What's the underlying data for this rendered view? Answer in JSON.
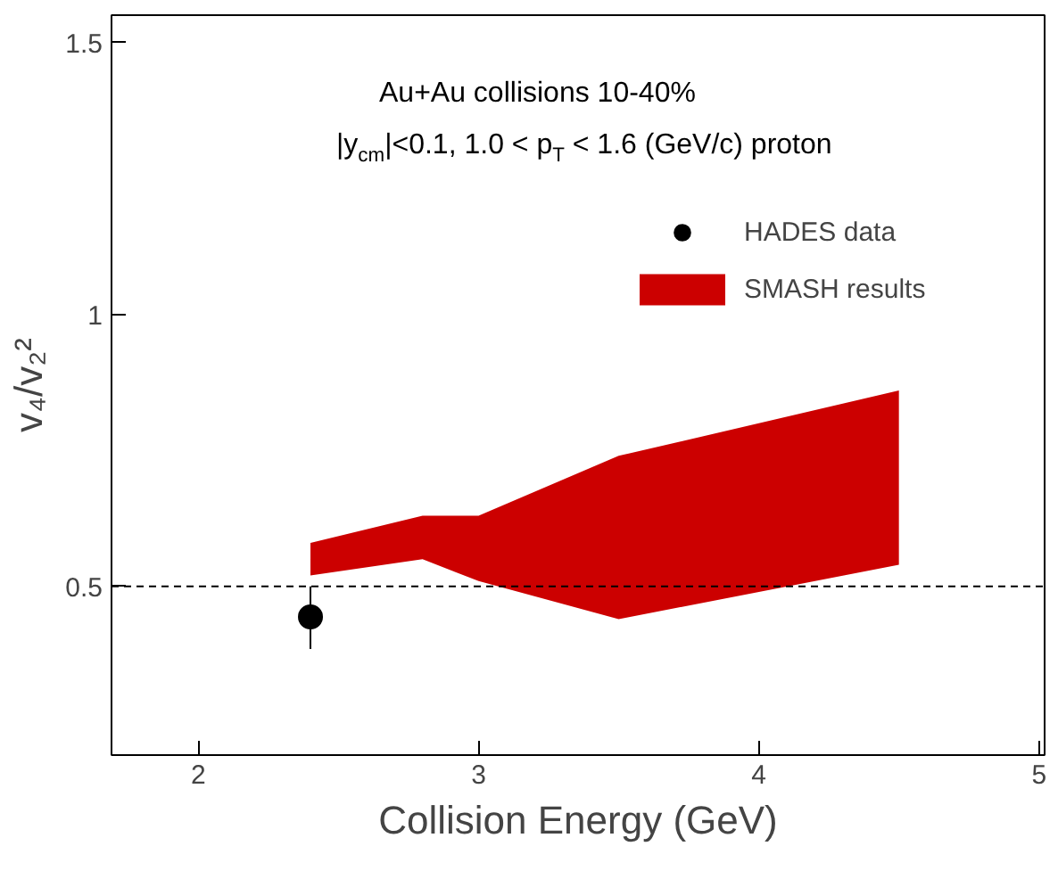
{
  "chart_data": {
    "type": "scatter",
    "xlabel": "Collision Energy (GeV)",
    "ylabel": "v₄/v₂²",
    "annotations": [
      "Au+Au collisions 10-40%",
      "|y$_{cm}$|<0.1, 1.0 < p$_{T}$ < 1.6 (GeV/c)   proton"
    ],
    "series": [
      {
        "name": "HADES data",
        "color": "#000000",
        "x": [
          2.4
        ],
        "values": [
          0.444
        ],
        "errors": [
          [
            0.385,
            0.5
          ]
        ]
      },
      {
        "name": "SMASH results",
        "type": "area",
        "color": "#cc0000",
        "x": [
          2.4,
          2.8,
          3.0,
          3.5,
          4.5
        ],
        "values": [
          null,
          null,
          null,
          null,
          null
        ],
        "lower": [
          0.52,
          0.55,
          0.51,
          0.44,
          0.54
        ],
        "upper": [
          0.58,
          0.63,
          0.63,
          0.74,
          0.86
        ]
      }
    ],
    "xlim": [
      1.69,
      5.02
    ],
    "ylim": [
      0.19,
      1.55
    ],
    "xticks": [
      2,
      3,
      4,
      5
    ],
    "yticks": [
      0.5,
      1,
      1.5
    ],
    "ref_lines": [
      {
        "axis": "y",
        "value": 0.5,
        "color": "#000000",
        "line_style": "dashed"
      }
    ],
    "legend": "top right",
    "grid": false,
    "marker": "circle"
  }
}
